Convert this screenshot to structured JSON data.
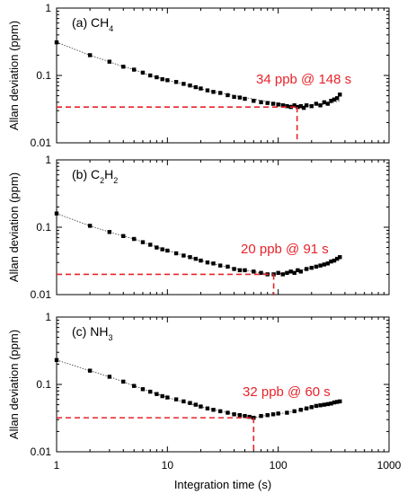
{
  "figure": {
    "xlabel": "Integration time (s)",
    "xlim": [
      1,
      1000
    ],
    "xscale": "log",
    "x_ticks": [
      "1",
      "10",
      "100",
      "1000"
    ]
  },
  "chart_data": [
    {
      "type": "scatter",
      "panel_label": "(a) CH",
      "panel_sub": "4",
      "ylabel": "Allan deviation (ppm)",
      "yscale": "log",
      "ylim": [
        0.01,
        1
      ],
      "y_ticks": [
        "0.01",
        "0.1",
        "1"
      ],
      "annotation": "34 ppb @ 148 s",
      "min_point": {
        "x": 148,
        "y": 0.034
      },
      "fit_curve": {
        "x": [
          1,
          2,
          3,
          4,
          5,
          7,
          10,
          15,
          20,
          30,
          50,
          80,
          120,
          160,
          200,
          250,
          300,
          360
        ],
        "y": [
          0.31,
          0.2,
          0.16,
          0.135,
          0.122,
          0.1,
          0.085,
          0.072,
          0.063,
          0.055,
          0.047,
          0.041,
          0.037,
          0.035,
          0.036,
          0.037,
          0.039,
          0.042
        ]
      },
      "sampled_points": {
        "x": [
          1,
          2,
          3,
          4,
          5,
          6,
          7,
          8,
          9,
          10,
          12,
          14,
          16,
          18,
          20,
          23,
          26,
          30,
          35,
          40,
          45,
          50,
          60,
          70,
          80,
          90,
          100,
          110,
          120,
          130,
          140,
          150,
          160,
          170,
          180,
          200,
          220,
          240,
          260,
          280,
          300,
          320,
          340,
          360
        ],
        "y": [
          0.31,
          0.2,
          0.16,
          0.135,
          0.122,
          0.11,
          0.1,
          0.094,
          0.088,
          0.085,
          0.08,
          0.075,
          0.071,
          0.067,
          0.064,
          0.06,
          0.057,
          0.055,
          0.051,
          0.048,
          0.047,
          0.045,
          0.042,
          0.04,
          0.039,
          0.038,
          0.037,
          0.036,
          0.035,
          0.034,
          0.036,
          0.034,
          0.035,
          0.033,
          0.036,
          0.035,
          0.038,
          0.036,
          0.04,
          0.038,
          0.042,
          0.044,
          0.046,
          0.052
        ]
      },
      "color_points": "#000000",
      "color_marker": "#e8232a"
    },
    {
      "type": "scatter",
      "panel_label": "(b) C",
      "panel_sub": "2",
      "panel_label_mid": "H",
      "panel_sub2": "2",
      "ylabel": "Allan deviation (ppm)",
      "yscale": "log",
      "ylim": [
        0.01,
        1
      ],
      "y_ticks": [
        "0.01",
        "0.1",
        "1"
      ],
      "annotation": "20 ppb @ 91 s",
      "min_point": {
        "x": 91,
        "y": 0.02
      },
      "fit_curve": {
        "x": [
          1,
          2,
          3,
          4,
          5,
          7,
          10,
          15,
          20,
          30,
          50,
          70,
          91,
          120,
          160,
          200,
          250,
          300,
          360
        ],
        "y": [
          0.16,
          0.105,
          0.085,
          0.074,
          0.067,
          0.055,
          0.045,
          0.037,
          0.032,
          0.027,
          0.023,
          0.021,
          0.02,
          0.021,
          0.023,
          0.025,
          0.028,
          0.031,
          0.036
        ]
      },
      "sampled_points": {
        "x": [
          1,
          2,
          3,
          4,
          5,
          6,
          7,
          8,
          9,
          10,
          12,
          14,
          16,
          18,
          20,
          23,
          26,
          30,
          35,
          40,
          45,
          50,
          60,
          70,
          80,
          91,
          100,
          110,
          120,
          130,
          140,
          150,
          160,
          180,
          200,
          220,
          240,
          260,
          280,
          300,
          320,
          340,
          360
        ],
        "y": [
          0.16,
          0.105,
          0.085,
          0.074,
          0.067,
          0.06,
          0.055,
          0.05,
          0.047,
          0.045,
          0.041,
          0.038,
          0.036,
          0.034,
          0.032,
          0.03,
          0.029,
          0.027,
          0.026,
          0.024,
          0.023,
          0.023,
          0.022,
          0.021,
          0.02,
          0.02,
          0.021,
          0.02,
          0.021,
          0.022,
          0.021,
          0.023,
          0.022,
          0.024,
          0.025,
          0.026,
          0.027,
          0.028,
          0.029,
          0.031,
          0.032,
          0.034,
          0.036
        ]
      },
      "color_points": "#000000",
      "color_marker": "#e8232a"
    },
    {
      "type": "scatter",
      "panel_label": "(c) NH",
      "panel_sub": "3",
      "ylabel": "Allan deviation (ppm)",
      "yscale": "log",
      "ylim": [
        0.01,
        1
      ],
      "y_ticks": [
        "0.01",
        "0.1",
        "1"
      ],
      "annotation": "32 ppb @ 60 s",
      "min_point": {
        "x": 60,
        "y": 0.032
      },
      "fit_curve": {
        "x": [
          1,
          2,
          3,
          4,
          5,
          7,
          10,
          15,
          20,
          30,
          45,
          60,
          80,
          120,
          160,
          200,
          250,
          300,
          360
        ],
        "y": [
          0.23,
          0.16,
          0.13,
          0.11,
          0.095,
          0.078,
          0.064,
          0.053,
          0.047,
          0.04,
          0.035,
          0.032,
          0.035,
          0.038,
          0.042,
          0.046,
          0.05,
          0.053,
          0.056
        ]
      },
      "sampled_points": {
        "x": [
          1,
          2,
          3,
          4,
          5,
          6,
          7,
          8,
          9,
          10,
          12,
          14,
          16,
          18,
          20,
          23,
          26,
          30,
          35,
          40,
          45,
          50,
          55,
          60,
          70,
          80,
          90,
          100,
          120,
          140,
          160,
          180,
          200,
          220,
          240,
          260,
          280,
          300,
          320,
          340,
          360
        ],
        "y": [
          0.23,
          0.16,
          0.13,
          0.11,
          0.095,
          0.085,
          0.078,
          0.072,
          0.067,
          0.064,
          0.06,
          0.056,
          0.053,
          0.05,
          0.047,
          0.044,
          0.042,
          0.04,
          0.038,
          0.036,
          0.035,
          0.034,
          0.033,
          0.032,
          0.034,
          0.035,
          0.036,
          0.037,
          0.038,
          0.04,
          0.042,
          0.044,
          0.046,
          0.048,
          0.049,
          0.05,
          0.051,
          0.052,
          0.054,
          0.055,
          0.056
        ]
      },
      "color_points": "#000000",
      "color_marker": "#e8232a"
    }
  ]
}
